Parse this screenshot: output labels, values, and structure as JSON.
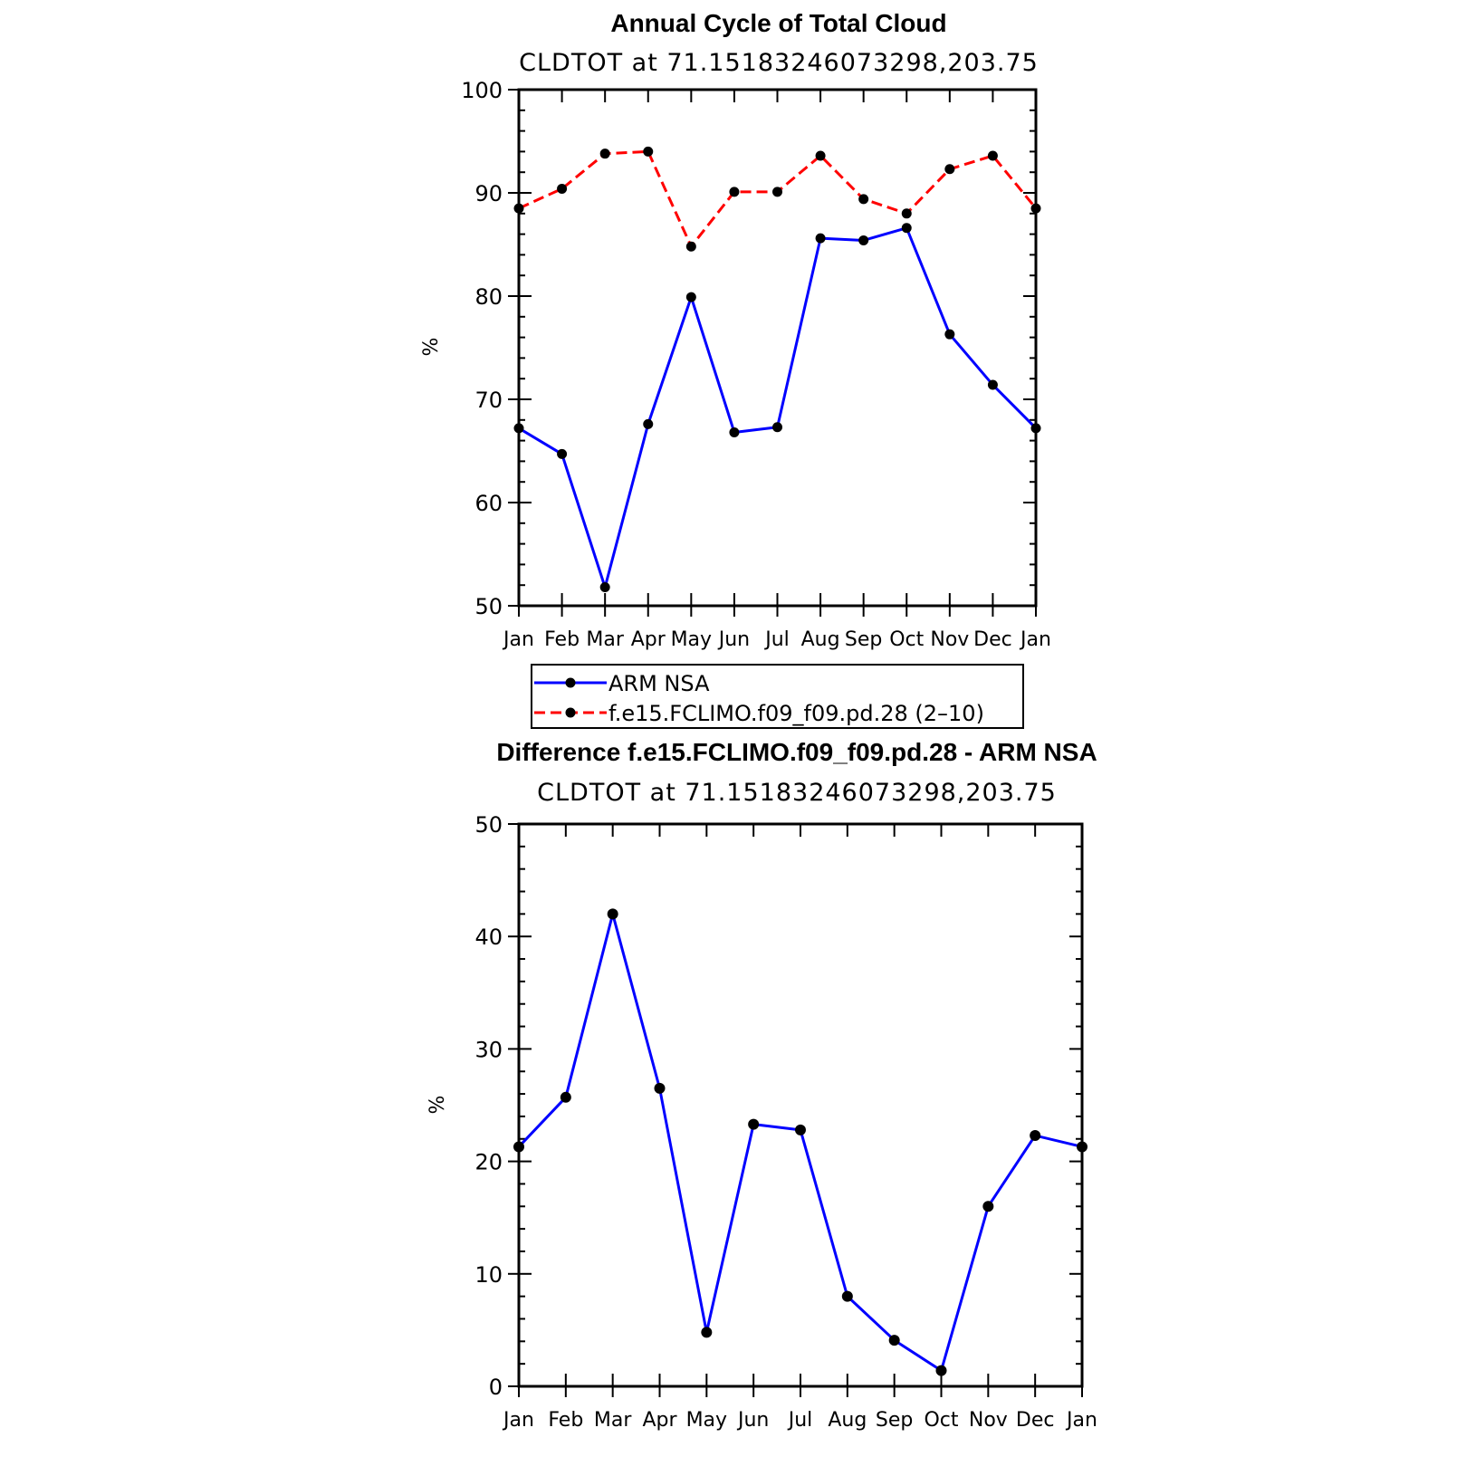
{
  "colors": {
    "background": "#ffffff",
    "axis": "#000000",
    "obs_series": "#0000ff",
    "model_series": "#ff0000",
    "marker": "#000000",
    "legend_border": "#000000"
  },
  "chart_data": [
    {
      "type": "line",
      "title": "Annual Cycle of Total Cloud",
      "subtitle": "CLDTOT at 71.15183246073298,203.75",
      "xlabel": "",
      "ylabel": "%",
      "categories": [
        "Jan",
        "Feb",
        "Mar",
        "Apr",
        "May",
        "Jun",
        "Jul",
        "Aug",
        "Sep",
        "Oct",
        "Nov",
        "Dec",
        "Jan"
      ],
      "ylim": [
        50,
        100
      ],
      "yticks": [
        50,
        60,
        70,
        80,
        90,
        100
      ],
      "yticks_labels": [
        "50",
        "60",
        "70",
        "80",
        "90",
        "100"
      ],
      "series": [
        {
          "name": "ARM NSA",
          "color": "#0000ff",
          "dash": "solid",
          "values": [
            67.2,
            64.7,
            51.8,
            67.6,
            79.9,
            66.8,
            67.3,
            85.6,
            85.4,
            86.6,
            76.3,
            71.4,
            67.2
          ]
        },
        {
          "name": "f.e15.FCLIMO.f09_f09.pd.28 (2–10)",
          "color": "#ff0000",
          "dash": "dashed",
          "values": [
            88.5,
            90.4,
            93.8,
            94.0,
            84.8,
            90.1,
            90.1,
            93.6,
            89.4,
            88.0,
            92.3,
            93.6,
            88.5
          ]
        }
      ],
      "grid": false,
      "legend": "below"
    },
    {
      "type": "line",
      "title": "Difference f.e15.FCLIMO.f09_f09.pd.28 - ARM NSA",
      "subtitle": "CLDTOT at 71.15183246073298,203.75",
      "xlabel": "",
      "ylabel": "%",
      "categories": [
        "Jan",
        "Feb",
        "Mar",
        "Apr",
        "May",
        "Jun",
        "Jul",
        "Aug",
        "Sep",
        "Oct",
        "Nov",
        "Dec",
        "Jan"
      ],
      "ylim": [
        0,
        50
      ],
      "yticks": [
        0,
        10,
        20,
        30,
        40,
        50
      ],
      "yticks_labels": [
        "0",
        "10",
        "20",
        "30",
        "40",
        "50"
      ],
      "series": [
        {
          "color": "#0000ff",
          "dash": "solid",
          "values": [
            21.3,
            25.7,
            42.0,
            26.5,
            4.8,
            23.3,
            22.8,
            8.0,
            4.1,
            1.4,
            16.0,
            22.3,
            21.3
          ]
        }
      ],
      "grid": false,
      "legend": "none"
    }
  ]
}
